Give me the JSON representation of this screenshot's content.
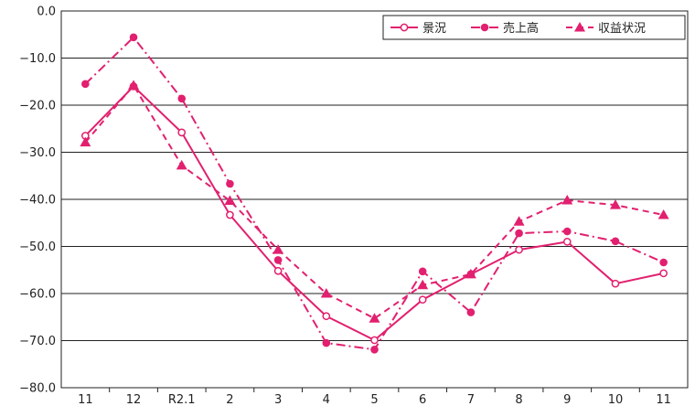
{
  "chart_data": {
    "type": "line",
    "categories": [
      "11",
      "12",
      "R2.1",
      "2",
      "3",
      "4",
      "5",
      "6",
      "7",
      "8",
      "9",
      "10",
      "11"
    ],
    "ylim": [
      -80,
      0
    ],
    "yticks": [
      0,
      -10,
      -20,
      -30,
      -40,
      -50,
      -60,
      -70,
      -80
    ],
    "ytick_labels": [
      "0.0",
      "−10.0",
      "−20.0",
      "−30.0",
      "−40.0",
      "−50.0",
      "−60.0",
      "−70.0",
      "−80.0"
    ],
    "grid": true,
    "legend_position": "top-right",
    "series": [
      {
        "name": "景況",
        "line_style": "solid",
        "marker": "open-circle",
        "values": [
          -26.5,
          -16.0,
          -25.8,
          -43.3,
          -55.2,
          -64.8,
          -69.9,
          -61.3,
          -55.9,
          -50.7,
          -49.0,
          -57.9,
          -55.7
        ]
      },
      {
        "name": "売上高",
        "line_style": "dash-dot",
        "marker": "filled-circle",
        "values": [
          -15.5,
          -5.6,
          -18.6,
          -36.7,
          -52.9,
          -70.5,
          -71.9,
          -55.3,
          -64.0,
          -47.2,
          -46.8,
          -48.9,
          -53.4
        ]
      },
      {
        "name": "収益状況",
        "line_style": "dashed",
        "marker": "filled-triangle",
        "values": [
          -27.9,
          -15.8,
          -32.8,
          -40.3,
          -50.7,
          -60.0,
          -65.3,
          -58.2,
          -55.9,
          -44.7,
          -40.2,
          -41.2,
          -43.3
        ]
      }
    ],
    "color": "#e2206f"
  }
}
